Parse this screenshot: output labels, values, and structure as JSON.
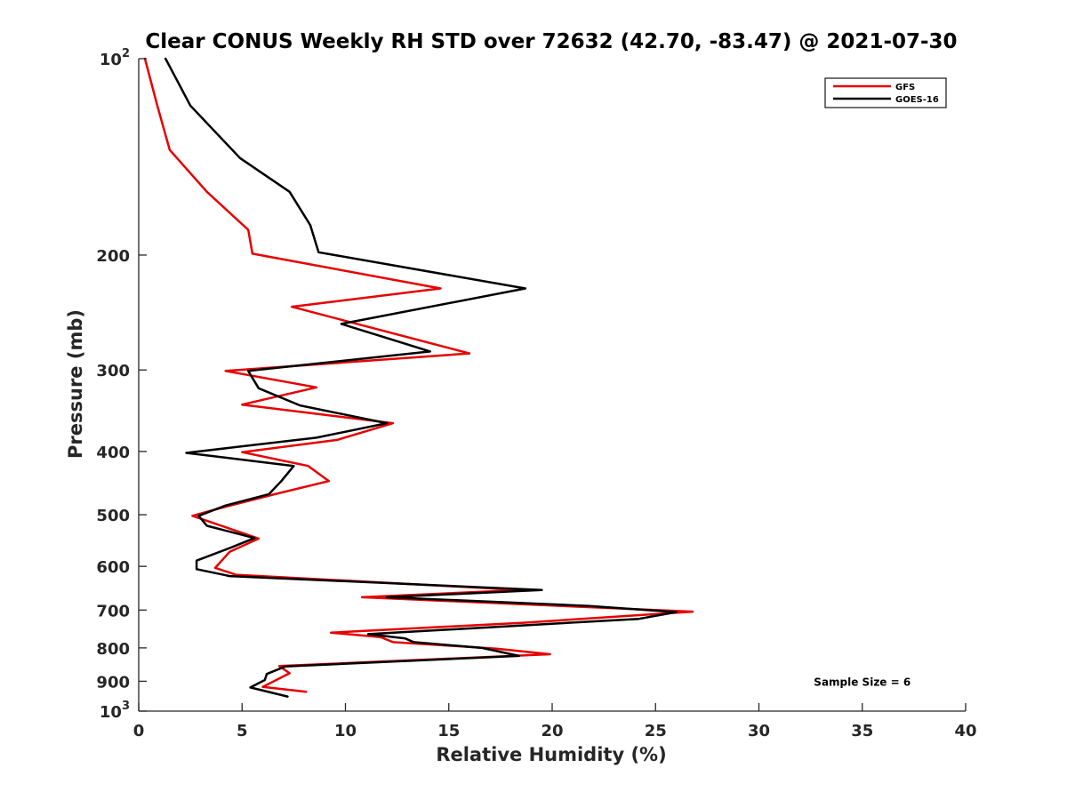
{
  "chart_data": {
    "type": "line",
    "title": "Clear CONUS Weekly RH STD over 72632 (42.70, -83.47) @ 2021-07-30",
    "xlabel": "Relative Humidity (%)",
    "ylabel": "Pressure (mb)",
    "xlim": [
      0,
      40
    ],
    "ylim": [
      100,
      1000
    ],
    "y_scale": "log",
    "y_reversed": true,
    "x_ticks": [
      0,
      5,
      10,
      15,
      20,
      25,
      30,
      35,
      40
    ],
    "y_ticks": [
      {
        "value": 100,
        "label": "10",
        "exp": "2"
      },
      {
        "value": 200,
        "label": "200"
      },
      {
        "value": 300,
        "label": "300"
      },
      {
        "value": 400,
        "label": "400"
      },
      {
        "value": 500,
        "label": "500"
      },
      {
        "value": 600,
        "label": "600"
      },
      {
        "value": 700,
        "label": "700"
      },
      {
        "value": 800,
        "label": "800"
      },
      {
        "value": 900,
        "label": "900"
      },
      {
        "value": 1000,
        "label": "10",
        "exp": "3"
      }
    ],
    "grid": false,
    "legend_position": "top-right",
    "series": [
      {
        "name": "GFS",
        "color": "#e60000",
        "points": [
          [
            0.3,
            100
          ],
          [
            0.9,
            118
          ],
          [
            1.5,
            138
          ],
          [
            3.3,
            160
          ],
          [
            5.3,
            183
          ],
          [
            5.5,
            199
          ],
          [
            14.6,
            225
          ],
          [
            7.4,
            240
          ],
          [
            16.0,
            283
          ],
          [
            4.2,
            301
          ],
          [
            8.6,
            319
          ],
          [
            5.0,
            339
          ],
          [
            12.3,
            362
          ],
          [
            9.6,
            384
          ],
          [
            5.0,
            401
          ],
          [
            8.2,
            421
          ],
          [
            9.2,
            444
          ],
          [
            6.6,
            465
          ],
          [
            4.2,
            486
          ],
          [
            2.6,
            502
          ],
          [
            5.8,
            544
          ],
          [
            4.4,
            570
          ],
          [
            3.7,
            603
          ],
          [
            4.7,
            618
          ],
          [
            18.5,
            652
          ],
          [
            10.8,
            669
          ],
          [
            26.8,
            704
          ],
          [
            18.6,
            732
          ],
          [
            9.3,
            758
          ],
          [
            11.7,
            770
          ],
          [
            12.3,
            784
          ],
          [
            17.3,
            802
          ],
          [
            19.9,
            818
          ],
          [
            6.8,
            853
          ],
          [
            7.3,
            875
          ],
          [
            6.0,
            918
          ],
          [
            8.1,
            934
          ]
        ]
      },
      {
        "name": "GOES-16",
        "color": "#000000",
        "points": [
          [
            1.3,
            100
          ],
          [
            2.5,
            118
          ],
          [
            4.9,
            142
          ],
          [
            7.3,
            160
          ],
          [
            8.3,
            180
          ],
          [
            8.7,
            198
          ],
          [
            18.7,
            225
          ],
          [
            9.8,
            255
          ],
          [
            14.1,
            281
          ],
          [
            5.3,
            301
          ],
          [
            5.8,
            320
          ],
          [
            7.8,
            340
          ],
          [
            12.0,
            362
          ],
          [
            8.6,
            381
          ],
          [
            2.3,
            402
          ],
          [
            7.5,
            421
          ],
          [
            6.9,
            444
          ],
          [
            6.3,
            465
          ],
          [
            4.2,
            484
          ],
          [
            2.9,
            502
          ],
          [
            3.3,
            520
          ],
          [
            5.6,
            543
          ],
          [
            4.5,
            561
          ],
          [
            2.8,
            588
          ],
          [
            2.8,
            606
          ],
          [
            4.4,
            621
          ],
          [
            19.5,
            652
          ],
          [
            12.0,
            669
          ],
          [
            21.8,
            690
          ],
          [
            26.0,
            705
          ],
          [
            24.2,
            722
          ],
          [
            11.1,
            762
          ],
          [
            12.9,
            774
          ],
          [
            13.3,
            784
          ],
          [
            16.6,
            800
          ],
          [
            18.4,
            823
          ],
          [
            7.1,
            854
          ],
          [
            6.2,
            877
          ],
          [
            6.1,
            896
          ],
          [
            5.4,
            920
          ],
          [
            7.2,
            950
          ]
        ]
      }
    ],
    "annotations": [
      {
        "text": "Sample Size = 6",
        "x": 35,
        "y": 900
      }
    ]
  }
}
